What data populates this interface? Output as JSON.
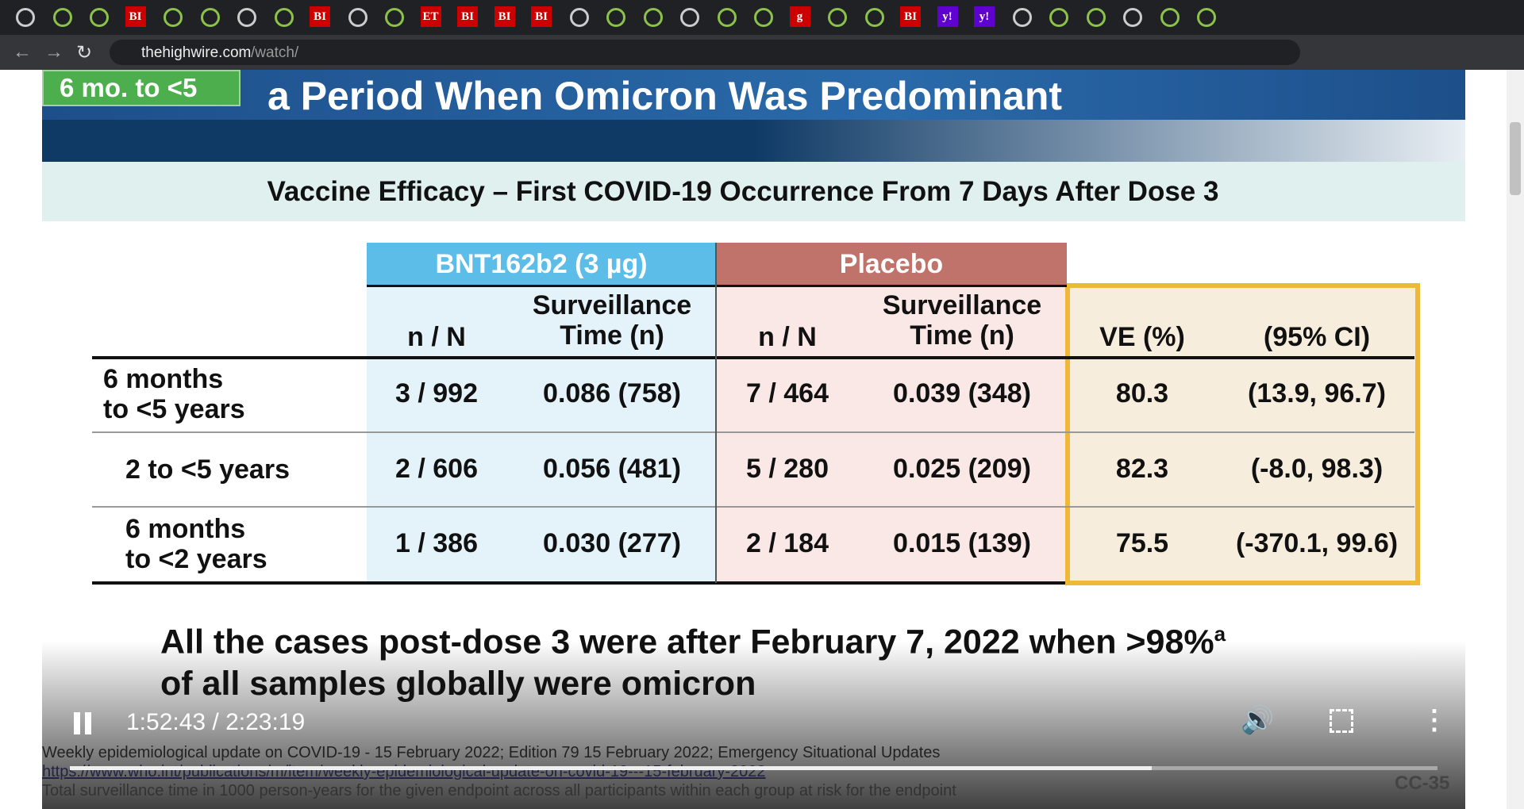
{
  "browser": {
    "url_host": "thehighwire.com",
    "url_path": "/watch/",
    "tab_labels": [
      "BI",
      "BI",
      "ET",
      "BI",
      "BI",
      "BI",
      "g",
      "BI",
      "y!",
      "y!"
    ]
  },
  "slide": {
    "tag": "6 mo. to <5",
    "title": "a Period When Omicron Was Predominant",
    "subtitle": "Vaccine Efficacy – First COVID-19 Occurrence From 7 Days After Dose 3",
    "table": {
      "groups": [
        "BNT162b2 (3 µg)",
        "Placebo"
      ],
      "columns": [
        [
          "n / N"
        ],
        [
          "Surveillance",
          "Time (n)"
        ],
        [
          "n / N"
        ],
        [
          "Surveillance",
          "Time (n)"
        ],
        [
          "VE (%)"
        ],
        [
          "(95% CI)"
        ]
      ],
      "rows": [
        {
          "label": [
            "6 months",
            "to <5 years"
          ],
          "cells": [
            "3 / 992",
            "0.086 (758)",
            "7 / 464",
            "0.039 (348)",
            80.3,
            "(13.9, 96.7)"
          ]
        },
        {
          "label": [
            "2 to <5 years"
          ],
          "cells": [
            "2 / 606",
            "0.056 (481)",
            "5 / 280",
            "0.025 (209)",
            82.3,
            "(-8.0, 98.3)"
          ]
        },
        {
          "label": [
            "6 months",
            "to <2 years"
          ],
          "cells": [
            "1 / 386",
            "0.030 (277)",
            "2 / 184",
            "0.015 (139)",
            75.5,
            "(-370.1, 99.6)"
          ]
        }
      ]
    },
    "note": [
      "All the cases post-dose 3 were after February 7, 2022 when >98%",
      "of all samples globally were omicron"
    ],
    "note_sup": "a",
    "footnotes": [
      "Weekly epidemiological update on COVID-19 - 15 February 2022; Edition 79 15 February 2022; Emergency Situational Updates",
      "https://www.who.int/publications/m/item/weekly-epidemiological-update-on-covid-19---15-february-2022",
      "Total surveillance time in 1000 person-years for the given endpoint across all participants within each group at risk for the endpoint"
    ],
    "slide_id": "CC-35"
  },
  "player": {
    "time": "1:52:43 / 2:23:19"
  }
}
